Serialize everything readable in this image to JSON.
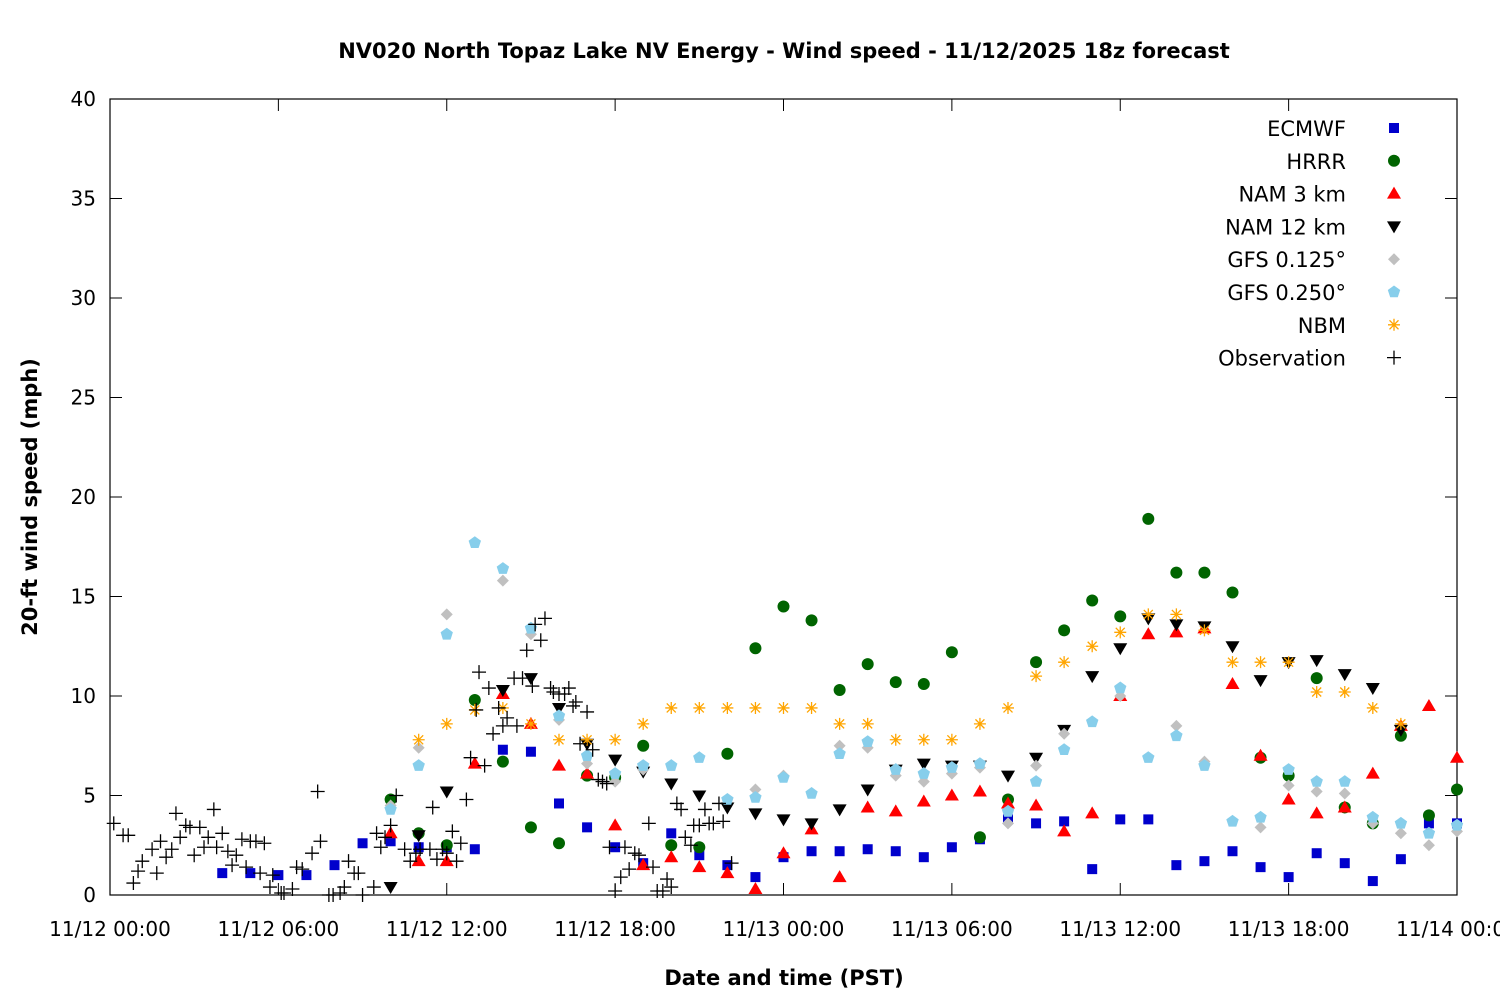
{
  "chart_data": {
    "type": "scatter",
    "title": "NV020 North Topaz Lake NV Energy - Wind speed - 11/12/2025 18z forecast",
    "xlabel": "Date and time (PST)",
    "ylabel": "20-ft wind speed (mph)",
    "xlim": [
      "11/12 00:00",
      "11/14 00:00"
    ],
    "ylim": [
      0,
      40
    ],
    "x_ticks": [
      "11/12 00:00",
      "11/12 06:00",
      "11/12 12:00",
      "11/12 18:00",
      "11/13 00:00",
      "11/13 06:00",
      "11/13 12:00",
      "11/13 18:00",
      "11/14 00:00"
    ],
    "y_ticks": [
      "0",
      "5",
      "10",
      "15",
      "20",
      "25",
      "30",
      "35",
      "40"
    ],
    "grid": false,
    "legend_position": "top-right",
    "model_times": [
      "11/12 04:00",
      "11/12 05:00",
      "11/12 06:00",
      "11/12 07:00",
      "11/12 08:00",
      "11/12 09:00",
      "11/12 10:00",
      "11/12 11:00",
      "11/12 12:00",
      "11/12 13:00",
      "11/12 14:00",
      "11/12 15:00",
      "11/12 16:00",
      "11/12 17:00",
      "11/12 18:00",
      "11/12 19:00",
      "11/12 20:00",
      "11/12 21:00",
      "11/12 22:00",
      "11/12 23:00",
      "11/13 00:00",
      "11/13 01:00",
      "11/13 02:00",
      "11/13 03:00",
      "11/13 04:00",
      "11/13 05:00",
      "11/13 06:00",
      "11/13 07:00",
      "11/13 08:00",
      "11/13 09:00",
      "11/13 10:00",
      "11/13 11:00",
      "11/13 12:00",
      "11/13 13:00",
      "11/13 14:00",
      "11/13 15:00",
      "11/13 16:00",
      "11/13 17:00",
      "11/13 18:00",
      "11/13 19:00",
      "11/13 20:00",
      "11/13 21:00",
      "11/13 22:00",
      "11/13 23:00",
      "11/14 00:00"
    ],
    "series": [
      {
        "name": "ECMWF",
        "marker": "square",
        "color": "#0000cc",
        "values": [
          1.1,
          1.1,
          1.0,
          1.0,
          1.5,
          2.6,
          2.7,
          2.4,
          2.4,
          2.3,
          7.3,
          7.2,
          4.6,
          3.4,
          2.4,
          1.6,
          3.1,
          2.0,
          1.5,
          0.9,
          1.9,
          2.2,
          2.2,
          2.3,
          2.2,
          1.9,
          2.4,
          2.8,
          3.8,
          3.6,
          3.7,
          1.3,
          3.8,
          3.8,
          1.5,
          1.7,
          2.2,
          1.4,
          0.9,
          2.1,
          1.6,
          0.7,
          1.8,
          3.6,
          3.6
        ]
      },
      {
        "name": "HRRR",
        "marker": "circle",
        "color": "#006400",
        "values": [
          null,
          null,
          null,
          null,
          null,
          null,
          4.8,
          3.1,
          2.5,
          9.8,
          6.7,
          3.4,
          2.6,
          6.0,
          5.9,
          7.5,
          2.5,
          2.4,
          7.1,
          12.4,
          14.5,
          13.8,
          10.3,
          11.6,
          10.7,
          10.6,
          12.2,
          2.9,
          4.8,
          11.7,
          13.3,
          14.8,
          14.0,
          18.9,
          16.2,
          16.2,
          15.2,
          6.9,
          6.0,
          10.9,
          4.4,
          3.6,
          8.0,
          4.0,
          5.3
        ]
      },
      {
        "name": "NAM 3 km",
        "marker": "triangle-up",
        "color": "#ff0000",
        "values": [
          null,
          null,
          null,
          null,
          null,
          null,
          3.1,
          1.7,
          1.7,
          6.6,
          10.1,
          8.6,
          6.5,
          6.1,
          3.5,
          1.5,
          1.9,
          1.4,
          1.1,
          0.3,
          2.1,
          3.3,
          0.9,
          4.4,
          4.2,
          4.7,
          5.0,
          5.2,
          4.6,
          4.5,
          3.2,
          4.1,
          10.0,
          13.1,
          13.2,
          13.4,
          10.6,
          7.0,
          4.8,
          4.1,
          4.4,
          6.1,
          8.5,
          9.5,
          6.9
        ]
      },
      {
        "name": "NAM 12 km",
        "marker": "triangle-down",
        "color": "#000000",
        "values": [
          null,
          null,
          null,
          null,
          null,
          null,
          0.4,
          3.0,
          5.2,
          null,
          10.3,
          10.9,
          9.4,
          7.6,
          6.8,
          6.2,
          5.6,
          5.0,
          4.4,
          4.1,
          3.8,
          3.6,
          4.3,
          5.3,
          6.3,
          6.6,
          6.5,
          6.5,
          6.0,
          6.9,
          8.3,
          11.0,
          12.4,
          13.9,
          13.6,
          13.5,
          12.5,
          10.8,
          11.7,
          11.8,
          11.1,
          10.4,
          8.3,
          null,
          null
        ]
      },
      {
        "name": "GFS 0.125°",
        "marker": "diamond",
        "color": "#c0c0c0",
        "values": [
          null,
          null,
          null,
          null,
          null,
          null,
          4.5,
          7.4,
          14.1,
          null,
          15.8,
          13.1,
          8.8,
          6.6,
          5.7,
          6.3,
          null,
          null,
          null,
          5.3,
          6.0,
          null,
          7.5,
          7.4,
          6.0,
          5.7,
          6.1,
          6.4,
          3.6,
          6.5,
          8.1,
          null,
          10.0,
          null,
          8.5,
          6.7,
          null,
          3.4,
          5.5,
          5.2,
          5.1,
          3.6,
          3.1,
          2.5,
          3.2
        ]
      },
      {
        "name": "GFS 0.250°",
        "marker": "pentagon",
        "color": "#87ceeb",
        "values": [
          null,
          null,
          null,
          null,
          null,
          null,
          4.3,
          6.5,
          13.1,
          17.7,
          16.4,
          13.4,
          9.0,
          7.0,
          6.1,
          6.5,
          6.5,
          6.9,
          4.8,
          4.9,
          5.9,
          5.1,
          7.1,
          7.7,
          6.3,
          6.1,
          6.4,
          6.6,
          4.2,
          5.7,
          7.3,
          8.7,
          10.4,
          6.9,
          8.0,
          6.5,
          3.7,
          3.9,
          6.3,
          5.7,
          5.7,
          3.9,
          3.6,
          3.1,
          3.5
        ]
      },
      {
        "name": "NBM",
        "marker": "asterisk",
        "color": "#ffa500",
        "values": [
          null,
          null,
          null,
          null,
          null,
          null,
          null,
          7.8,
          8.6,
          9.3,
          9.4,
          8.6,
          7.8,
          7.8,
          7.8,
          8.6,
          9.4,
          9.4,
          9.4,
          9.4,
          9.4,
          9.4,
          8.6,
          8.6,
          7.8,
          7.8,
          7.8,
          8.6,
          9.4,
          11.0,
          11.7,
          12.5,
          13.2,
          14.1,
          14.1,
          13.3,
          11.7,
          11.7,
          11.7,
          10.2,
          10.2,
          9.4,
          8.6,
          null,
          null
        ]
      }
    ],
    "observations": {
      "name": "Observation",
      "marker": "plus",
      "color": "#000000",
      "points": [
        [
          "11/12 00:08",
          3.6
        ],
        [
          "11/12 00:28",
          3.0
        ],
        [
          "11/12 00:39",
          3.0
        ],
        [
          "11/12 00:50",
          0.6
        ],
        [
          "11/12 01:00",
          1.2
        ],
        [
          "11/12 01:09",
          1.7
        ],
        [
          "11/12 01:30",
          2.3
        ],
        [
          "11/12 01:40",
          1.1
        ],
        [
          "11/12 01:48",
          2.7
        ],
        [
          "11/12 02:00",
          1.9
        ],
        [
          "11/12 02:12",
          2.3
        ],
        [
          "11/12 02:21",
          4.1
        ],
        [
          "11/12 02:30",
          2.9
        ],
        [
          "11/12 02:42",
          3.5
        ],
        [
          "11/12 02:51",
          3.4
        ],
        [
          "11/12 03:00",
          2.0
        ],
        [
          "11/12 03:12",
          3.4
        ],
        [
          "11/12 03:21",
          2.4
        ],
        [
          "11/12 03:30",
          2.9
        ],
        [
          "11/12 03:42",
          4.3
        ],
        [
          "11/12 03:48",
          2.4
        ],
        [
          "11/12 04:00",
          3.1
        ],
        [
          "11/12 04:12",
          2.2
        ],
        [
          "11/12 04:21",
          1.5
        ],
        [
          "11/12 04:30",
          2.0
        ],
        [
          "11/12 04:42",
          2.8
        ],
        [
          "11/12 04:51",
          1.4
        ],
        [
          "11/12 05:00",
          2.7
        ],
        [
          "11/12 05:12",
          2.7
        ],
        [
          "11/12 05:21",
          1.1
        ],
        [
          "11/12 05:30",
          2.6
        ],
        [
          "11/12 05:42",
          0.4
        ],
        [
          "11/12 05:48",
          1.0
        ],
        [
          "11/12 06:06",
          0.1
        ],
        [
          "11/12 06:12",
          0.1
        ],
        [
          "11/12 06:30",
          0.3
        ],
        [
          "11/12 06:39",
          1.4
        ],
        [
          "11/12 06:51",
          1.3
        ],
        [
          "11/12 07:12",
          2.1
        ],
        [
          "11/12 07:24",
          5.2
        ],
        [
          "11/12 07:30",
          2.7
        ],
        [
          "11/12 07:48",
          0.0
        ],
        [
          "11/12 07:57",
          0.0
        ],
        [
          "11/12 08:12",
          0.1
        ],
        [
          "11/12 08:21",
          0.4
        ],
        [
          "11/12 08:30",
          1.7
        ],
        [
          "11/12 08:42",
          1.1
        ],
        [
          "11/12 08:51",
          1.1
        ],
        [
          "11/12 09:00",
          0.0
        ],
        [
          "11/12 09:24",
          0.4
        ],
        [
          "11/12 09:30",
          3.1
        ],
        [
          "11/12 09:39",
          2.4
        ],
        [
          "11/12 09:48",
          2.9
        ],
        [
          "11/12 10:00",
          3.5
        ],
        [
          "11/12 10:12",
          5.0
        ],
        [
          "11/12 10:30",
          2.3
        ],
        [
          "11/12 10:42",
          1.7
        ],
        [
          "11/12 10:54",
          2.1
        ],
        [
          "11/12 11:03",
          2.3
        ],
        [
          "11/12 11:24",
          2.3
        ],
        [
          "11/12 11:30",
          4.4
        ],
        [
          "11/12 11:39",
          1.8
        ],
        [
          "11/12 11:51",
          2.3
        ],
        [
          "11/12 12:00",
          2.1
        ],
        [
          "11/12 12:12",
          3.2
        ],
        [
          "11/12 12:21",
          1.7
        ],
        [
          "11/12 12:30",
          2.6
        ],
        [
          "11/12 12:42",
          4.8
        ],
        [
          "11/12 12:51",
          6.9
        ],
        [
          "11/12 13:03",
          9.3
        ],
        [
          "11/12 13:09",
          11.2
        ],
        [
          "11/12 13:21",
          6.5
        ],
        [
          "11/12 13:30",
          10.4
        ],
        [
          "11/12 13:39",
          8.1
        ],
        [
          "11/12 13:51",
          9.4
        ],
        [
          "11/12 14:00",
          8.5
        ],
        [
          "11/12 14:09",
          8.9
        ],
        [
          "11/12 14:24",
          10.9
        ],
        [
          "11/12 14:30",
          8.5
        ],
        [
          "11/12 14:42",
          10.9
        ],
        [
          "11/12 14:51",
          12.3
        ],
        [
          "11/12 15:03",
          10.5
        ],
        [
          "11/12 15:09",
          13.6
        ],
        [
          "11/12 15:21",
          12.8
        ],
        [
          "11/12 15:30",
          13.9
        ],
        [
          "11/12 15:42",
          10.4
        ],
        [
          "11/12 15:48",
          10.2
        ],
        [
          "11/12 16:00",
          10.1
        ],
        [
          "11/12 16:12",
          10.1
        ],
        [
          "11/12 16:21",
          10.4
        ],
        [
          "11/12 16:30",
          9.5
        ],
        [
          "11/12 16:36",
          9.7
        ],
        [
          "11/12 16:45",
          7.6
        ],
        [
          "11/12 17:00",
          9.2
        ],
        [
          "11/12 17:12",
          7.3
        ],
        [
          "11/12 17:24",
          5.8
        ],
        [
          "11/12 17:33",
          5.7
        ],
        [
          "11/12 17:42",
          5.6
        ],
        [
          "11/12 17:48",
          2.4
        ],
        [
          "11/12 18:00",
          0.2
        ],
        [
          "11/12 18:12",
          0.9
        ],
        [
          "11/12 18:21",
          2.4
        ],
        [
          "11/12 18:30",
          1.3
        ],
        [
          "11/12 18:42",
          2.1
        ],
        [
          "11/12 18:51",
          2.0
        ],
        [
          "11/12 19:12",
          3.6
        ],
        [
          "11/12 19:21",
          1.4
        ],
        [
          "11/12 19:30",
          0.2
        ],
        [
          "11/12 19:42",
          0.2
        ],
        [
          "11/12 19:51",
          0.8
        ],
        [
          "11/12 20:00",
          0.4
        ],
        [
          "11/12 20:12",
          4.6
        ],
        [
          "11/12 20:21",
          4.3
        ],
        [
          "11/12 20:30",
          2.9
        ],
        [
          "11/12 20:42",
          2.5
        ],
        [
          "11/12 20:48",
          3.5
        ],
        [
          "11/12 21:00",
          3.5
        ],
        [
          "11/12 21:12",
          4.3
        ],
        [
          "11/12 21:21",
          3.6
        ],
        [
          "11/12 21:30",
          3.6
        ],
        [
          "11/12 21:42",
          4.6
        ],
        [
          "11/12 21:51",
          3.7
        ],
        [
          "11/12 22:09",
          1.6
        ]
      ]
    }
  }
}
